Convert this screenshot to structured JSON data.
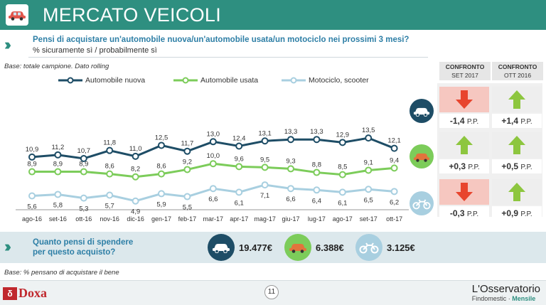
{
  "header": {
    "title": "MERCATO VEICOLI",
    "icon": "car-icon"
  },
  "question": {
    "main": "Pensi di acquistare un'automobile nuova/un'automobile usata/un motociclo nei prossimi 3 mesi?",
    "sub": "% sicuramente sì / probabilmente sì"
  },
  "base_note": "Base: totale campione. Dato rolling",
  "colors": {
    "nuova": "#1e4d66",
    "usata": "#7ccc5a",
    "moto": "#a8cfe0",
    "teal": "#2e8f80",
    "up": "#8dc63f",
    "down": "#e8452e"
  },
  "chart_data": {
    "type": "line",
    "categories": [
      "ago-16",
      "set-16",
      "ott-16",
      "nov-16",
      "dic-16",
      "gen-17",
      "feb-17",
      "mar-17",
      "apr-17",
      "mag-17",
      "giu-17",
      "lug-17",
      "ago-17",
      "set-17",
      "ott-17"
    ],
    "series": [
      {
        "name": "Automobile nuova",
        "values": [
          10.9,
          11.2,
          10.7,
          11.8,
          11.0,
          12.5,
          11.7,
          13.0,
          12.4,
          13.1,
          13.3,
          13.3,
          12.9,
          13.5,
          12.1
        ]
      },
      {
        "name": "Automobile usata",
        "values": [
          8.9,
          8.9,
          8.9,
          8.6,
          8.2,
          8.6,
          9.2,
          10.0,
          9.6,
          9.5,
          9.3,
          8.8,
          8.5,
          9.1,
          9.4
        ]
      },
      {
        "name": "Motociclo, scooter",
        "values": [
          5.6,
          5.8,
          5.3,
          5.7,
          4.9,
          5.9,
          5.5,
          6.6,
          6.1,
          7.1,
          6.6,
          6.4,
          6.1,
          6.5,
          6.2
        ]
      }
    ],
    "legend_position": "top"
  },
  "comparison": {
    "headers": [
      {
        "title": "CONFRONTO",
        "sub": "SET 2017"
      },
      {
        "title": "CONFRONTO",
        "sub": "OTT 2016"
      }
    ],
    "rows": [
      {
        "icon": "car-icon",
        "set": {
          "value": "-1,4",
          "dir": "down"
        },
        "ott": {
          "value": "+1,4",
          "dir": "up"
        }
      },
      {
        "icon": "used-car-icon",
        "set": {
          "value": "+0,3",
          "dir": "up"
        },
        "ott": {
          "value": "+0,5",
          "dir": "up"
        }
      },
      {
        "icon": "motorcycle-icon",
        "set": {
          "value": "-0,3",
          "dir": "down"
        },
        "ott": {
          "value": "+0,9",
          "dir": "up"
        }
      }
    ],
    "unit": "P.P."
  },
  "spend": {
    "question": "Quanto pensi di spendere per questo acquisto?",
    "items": [
      {
        "icon": "car-icon",
        "amount": "19.477€"
      },
      {
        "icon": "used-car-icon",
        "amount": "6.388€"
      },
      {
        "icon": "motorcycle-icon",
        "amount": "3.125€"
      }
    ]
  },
  "base_note2": "Base: % pensano di acquistare il bene",
  "footer": {
    "brand": "Doxa",
    "page": "11",
    "oss_title": "L'Osservatorio",
    "oss_sub": "Findomestic",
    "oss_freq": "Mensile"
  }
}
